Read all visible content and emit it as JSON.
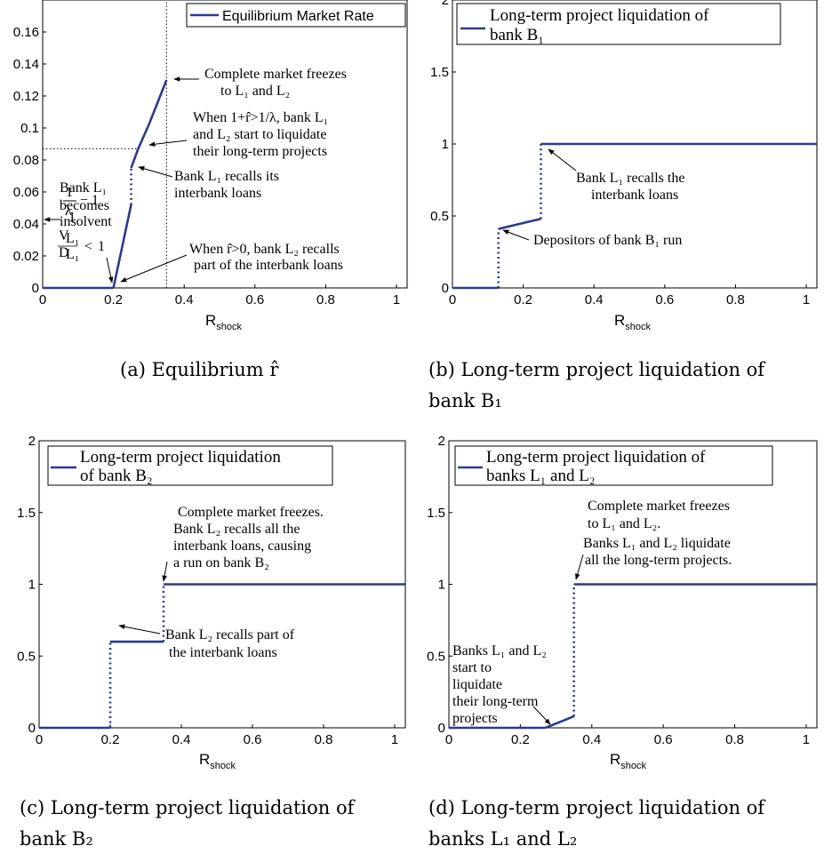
{
  "chart_data": [
    {
      "id": "a",
      "type": "line",
      "caption": "(a) Equilibrium r̂",
      "xlabel": "R",
      "xlabel_sub": "shock",
      "xlim": [
        0,
        1.03
      ],
      "ylim": [
        0,
        0.18
      ],
      "xticks": [
        0,
        0.2,
        0.4,
        0.6,
        0.8,
        1
      ],
      "xtick_labels": [
        "0",
        "0.2",
        "0.4",
        "0.6",
        "0.8",
        "1"
      ],
      "yticks": [
        0,
        0.02,
        0.04,
        0.06,
        0.08,
        0.1,
        0.12,
        0.14,
        0.16
      ],
      "ytick_labels": [
        "0",
        "0.02",
        "0.04",
        "0.06",
        "0.08",
        "0.1",
        "0.12",
        "0.14",
        "0.16"
      ],
      "legend": {
        "label": "Equilibrium Market Rate",
        "position": "top-right"
      },
      "series": [
        {
          "name": "Equilibrium Market Rate",
          "segments": [
            {
              "style": "solid",
              "x": [
                0,
                0.2
              ],
              "y": [
                0,
                0
              ]
            },
            {
              "style": "solid",
              "x": [
                0.2,
                0.25
              ],
              "y": [
                0,
                0.052
              ]
            },
            {
              "style": "dotted",
              "x": [
                0.25,
                0.25
              ],
              "y": [
                0.052,
                0.075
              ]
            },
            {
              "style": "solid",
              "x": [
                0.25,
                0.27,
                0.3,
                0.35
              ],
              "y": [
                0.075,
                0.087,
                0.102,
                0.13
              ]
            }
          ]
        }
      ],
      "reference_lines": [
        {
          "orientation": "vertical",
          "x": 0.35
        },
        {
          "orientation": "horizontal",
          "y": 0.087,
          "x_end": 0.27
        }
      ],
      "annotations": [
        "Complete market freezes",
        "to L₁ and L₂",
        "When 1+r̂>1/λ, bank L₁",
        "and L₂ start to liquidate",
        "their long-term projects",
        "Bank L₁ recalls its",
        "interbank loans",
        "When r̂>0, bank L₂ recalls",
        "part of the interbank loans",
        "Bank L₁",
        "becomes",
        "insolvent",
        "V",
        "L₁",
        "D",
        "L₁",
        "<",
        "1",
        "1",
        "λ",
        "− 1"
      ]
    },
    {
      "id": "b",
      "type": "line",
      "caption": "(b) Long-term project liquidation of",
      "caption_line2": "bank B₁",
      "xlabel": "R",
      "xlabel_sub": "shock",
      "xlim": [
        0,
        1.03
      ],
      "ylim": [
        0,
        2
      ],
      "xticks": [
        0,
        0.2,
        0.4,
        0.6,
        0.8,
        1
      ],
      "xtick_labels": [
        "0",
        "0.2",
        "0.4",
        "0.6",
        "0.8",
        "1"
      ],
      "yticks": [
        0,
        0.5,
        1,
        1.5,
        2
      ],
      "ytick_labels": [
        "0",
        "0.5",
        "1",
        "1.5",
        "2"
      ],
      "legend": {
        "label_line1": "Long-term project liquidation of",
        "label_line2": "bank B₁",
        "position": "top-right"
      },
      "series": [
        {
          "name": "Long-term project liquidation of bank B₁",
          "segments": [
            {
              "style": "solid",
              "x": [
                0,
                0.13
              ],
              "y": [
                0,
                0
              ]
            },
            {
              "style": "dotted",
              "x": [
                0.13,
                0.13
              ],
              "y": [
                0,
                0.41
              ]
            },
            {
              "style": "solid",
              "x": [
                0.13,
                0.25
              ],
              "y": [
                0.41,
                0.48
              ]
            },
            {
              "style": "dotted",
              "x": [
                0.25,
                0.25
              ],
              "y": [
                0.48,
                1
              ]
            },
            {
              "style": "solid",
              "x": [
                0.25,
                1.03
              ],
              "y": [
                1,
                1
              ]
            }
          ]
        }
      ],
      "annotations": [
        "Bank L₁ recalls the",
        "interbank loans",
        "Depositors of bank B₁ run"
      ]
    },
    {
      "id": "c",
      "type": "line",
      "caption": "(c) Long-term project liquidation of",
      "caption_line2": "bank B₂",
      "xlabel": "R",
      "xlabel_sub": "shock",
      "xlim": [
        0,
        1.03
      ],
      "ylim": [
        0,
        2
      ],
      "xticks": [
        0,
        0.2,
        0.4,
        0.6,
        0.8,
        1
      ],
      "xtick_labels": [
        "0",
        "0.2",
        "0.4",
        "0.6",
        "0.8",
        "1"
      ],
      "yticks": [
        0,
        0.5,
        1,
        1.5,
        2
      ],
      "ytick_labels": [
        "0",
        "0.5",
        "1",
        "1.5",
        "2"
      ],
      "legend": {
        "label_line1": "Long-term project liquidation",
        "label_line2": "of bank B₂",
        "position": "top-right"
      },
      "series": [
        {
          "name": "Long-term project liquidation of bank B₂",
          "segments": [
            {
              "style": "solid",
              "x": [
                0,
                0.2
              ],
              "y": [
                0,
                0
              ]
            },
            {
              "style": "dotted",
              "x": [
                0.2,
                0.2
              ],
              "y": [
                0,
                0.6
              ]
            },
            {
              "style": "solid",
              "x": [
                0.2,
                0.35
              ],
              "y": [
                0.6,
                0.6
              ]
            },
            {
              "style": "dotted",
              "x": [
                0.35,
                0.35
              ],
              "y": [
                0.6,
                1
              ]
            },
            {
              "style": "solid",
              "x": [
                0.35,
                1.03
              ],
              "y": [
                1,
                1
              ]
            }
          ]
        }
      ],
      "annotations": [
        "Complete market freezes.",
        "Bank L₂ recalls all the",
        "interbank loans, causing",
        "a run on bank B₂",
        "Bank L₂ recalls part of",
        "the interbank loans"
      ]
    },
    {
      "id": "d",
      "type": "line",
      "caption": "(d) Long-term project liquidation of",
      "caption_line2": "banks L₁ and L₂",
      "xlabel": "R",
      "xlabel_sub": "shock",
      "xlim": [
        0,
        1.03
      ],
      "ylim": [
        0,
        2
      ],
      "xticks": [
        0,
        0.2,
        0.4,
        0.6,
        0.8,
        1
      ],
      "xtick_labels": [
        "0",
        "0.2",
        "0.4",
        "0.6",
        "0.8",
        "1"
      ],
      "yticks": [
        0,
        0.5,
        1,
        1.5,
        2
      ],
      "ytick_labels": [
        "0",
        "0.5",
        "1",
        "1.5",
        "2"
      ],
      "legend": {
        "label_line1": "Long-term project liquidation of",
        "label_line2": "banks L₁ and L₂",
        "position": "top-right"
      },
      "series": [
        {
          "name": "Long-term project liquidation of banks L₁ and L₂",
          "segments": [
            {
              "style": "solid",
              "x": [
                0,
                0.27
              ],
              "y": [
                0,
                0
              ]
            },
            {
              "style": "solid",
              "x": [
                0.27,
                0.3,
                0.35
              ],
              "y": [
                0,
                0.03,
                0.08
              ]
            },
            {
              "style": "dotted",
              "x": [
                0.35,
                0.35
              ],
              "y": [
                0.08,
                1
              ]
            },
            {
              "style": "solid",
              "x": [
                0.35,
                1.03
              ],
              "y": [
                1,
                1
              ]
            }
          ]
        }
      ],
      "annotations": [
        "Complete market freezes",
        "to L₁ and L₂.",
        "Banks L₁ and L₂ liquidate",
        "all the long-term projects.",
        "Banks L₁ and L₂",
        "start to",
        "liquidate",
        "their long-term",
        "projects"
      ]
    }
  ]
}
